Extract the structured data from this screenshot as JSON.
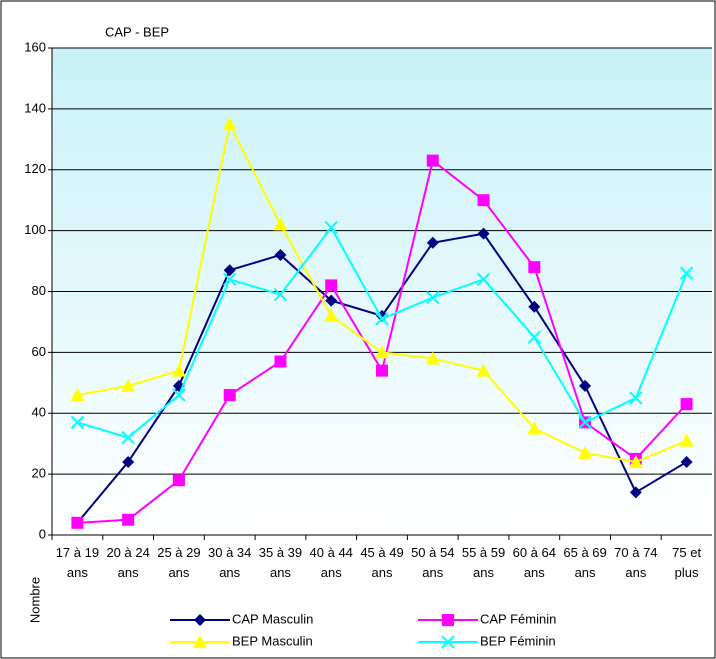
{
  "chart_data": {
    "type": "line",
    "title": "CAP - BEP",
    "y_label": "Nombre",
    "categories": [
      "17 à 19 ans",
      "20 à 24 ans",
      "25 à 29 ans",
      "30 à 34 ans",
      "35 à 39 ans",
      "40 à 44 ans",
      "45 à 49 ans",
      "50 à 54 ans",
      "55 à 59 ans",
      "60 à 64 ans",
      "65 à 69 ans",
      "70 à 74 ans",
      "75 et plus"
    ],
    "series": [
      {
        "name": "CAP Masculin",
        "color": "#000080",
        "marker": "diamond",
        "values": [
          4,
          24,
          49,
          87,
          92,
          77,
          72,
          96,
          99,
          75,
          49,
          14,
          24
        ]
      },
      {
        "name": "CAP Féminin",
        "color": "#ff00ff",
        "marker": "square",
        "values": [
          4,
          5,
          18,
          46,
          57,
          82,
          54,
          123,
          110,
          88,
          37,
          25,
          43
        ]
      },
      {
        "name": "BEP Masculin",
        "color": "#ffff00",
        "marker": "triangle",
        "values": [
          46,
          49,
          54,
          135,
          102,
          72,
          60,
          58,
          54,
          35,
          27,
          24,
          31
        ]
      },
      {
        "name": "BEP Féminin",
        "color": "#00ffff",
        "marker": "x",
        "values": [
          37,
          32,
          46,
          84,
          79,
          101,
          71,
          78,
          84,
          65,
          37,
          45,
          86
        ]
      }
    ],
    "ylim": [
      0,
      160
    ],
    "yticks": [
      0,
      20,
      40,
      60,
      80,
      100,
      120,
      140,
      160
    ],
    "grid": true
  }
}
